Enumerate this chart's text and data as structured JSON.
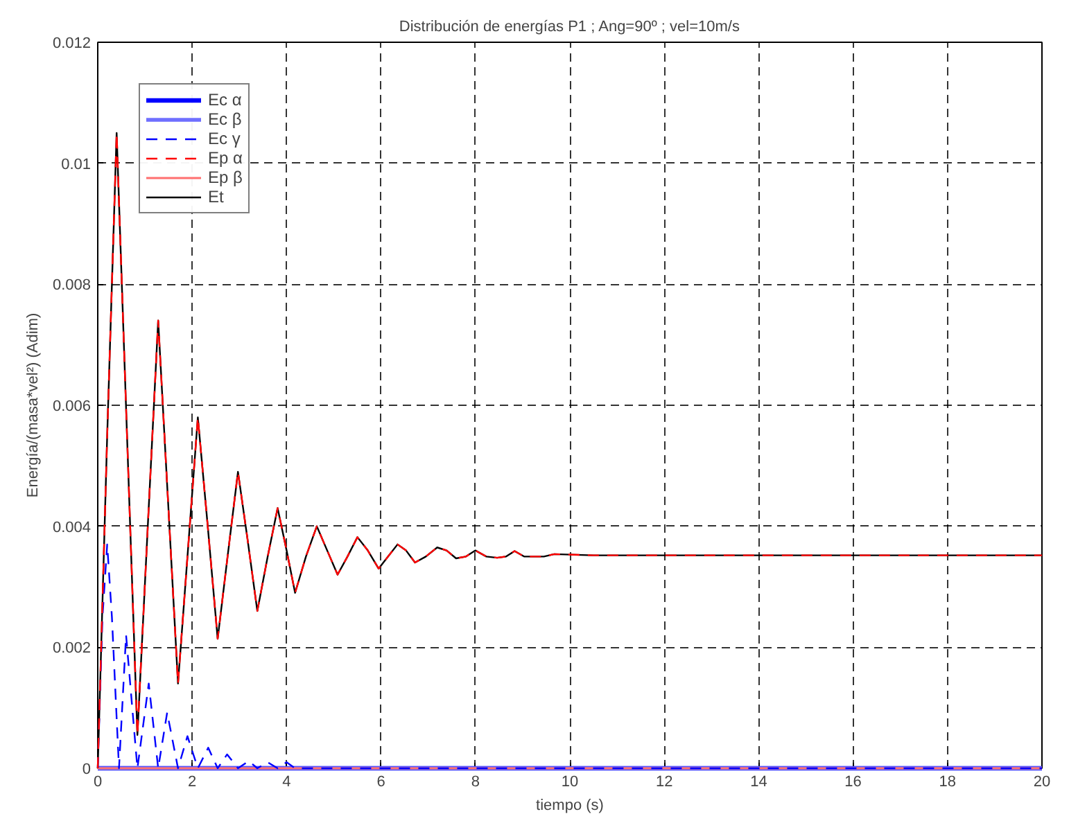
{
  "chart_data": {
    "type": "line",
    "title": "Distribución de energías P1 ; Ang=90º ; vel=10m/s",
    "xlabel": "tiempo (s)",
    "ylabel": "Energía/(masa*vel²) (Adim)",
    "xlim": [
      0,
      20
    ],
    "ylim": [
      0,
      0.012
    ],
    "xticks": [
      0,
      2,
      4,
      6,
      8,
      10,
      12,
      14,
      16,
      18,
      20
    ],
    "yticks": [
      0,
      0.002,
      0.004,
      0.006,
      0.008,
      0.01,
      0.012
    ],
    "grid": true,
    "legend": "top left",
    "marker": "none",
    "series": [
      {
        "name": "Ec α",
        "color": "#0000ff",
        "line_style": "solid",
        "x": [
          0,
          20
        ],
        "values": [
          0,
          0
        ]
      },
      {
        "name": "Ec β",
        "color": "#6f6fff",
        "line_style": "solid",
        "x": [
          0,
          20
        ],
        "values": [
          0,
          0
        ]
      },
      {
        "name": "Ec γ",
        "color": "#0000ff",
        "line_style": "dashed",
        "x": [
          0,
          0.1,
          0.2,
          0.3,
          0.45,
          0.6,
          0.84,
          1.08,
          1.28,
          1.47,
          1.7,
          1.9,
          2.12,
          2.34,
          2.54,
          2.74,
          2.97,
          3.2,
          3.38,
          3.6,
          3.81,
          4.0,
          4.18,
          4.4,
          4.64,
          20
        ],
        "values": [
          0,
          0.0025,
          0.0037,
          0.0025,
          0,
          0.0022,
          0,
          0.0014,
          0,
          0.00092,
          0,
          0.00053,
          0,
          0.00034,
          0,
          0.00023,
          0,
          0.00012,
          0,
          0.0001,
          0,
          0.0001,
          0,
          0,
          0,
          0
        ]
      },
      {
        "name": "Ep α",
        "color": "#ff0000",
        "line_style": "dashed",
        "x": [
          0,
          0.2,
          0.4,
          0.62,
          0.84,
          1.06,
          1.28,
          1.49,
          1.7,
          1.91,
          2.12,
          2.33,
          2.54,
          2.75,
          2.97,
          3.17,
          3.38,
          3.6,
          3.81,
          4.0,
          4.18,
          4.41,
          4.64,
          4.86,
          5.08,
          5.29,
          5.5,
          5.72,
          5.95,
          6.15,
          6.35,
          6.53,
          6.72,
          6.95,
          7.19,
          7.39,
          7.59,
          7.8,
          8.0,
          8.23,
          8.46,
          8.65,
          8.83,
          9.03,
          9.23,
          9.45,
          9.67,
          10.5,
          20
        ],
        "values": [
          0,
          0.0055,
          0.0105,
          0.0055,
          0.00055,
          0.004,
          0.0074,
          0.0044,
          0.0014,
          0.0036,
          0.0058,
          0.004,
          0.00214,
          0.0035,
          0.0049,
          0.0038,
          0.0026,
          0.0035,
          0.0043,
          0.0036,
          0.0029,
          0.0035,
          0.004,
          0.0036,
          0.0032,
          0.0035,
          0.00382,
          0.0036,
          0.0033,
          0.0035,
          0.0037,
          0.0036,
          0.0034,
          0.0035,
          0.00365,
          0.0036,
          0.00347,
          0.0035,
          0.0036,
          0.0035,
          0.00348,
          0.0035,
          0.00359,
          0.0035,
          0.0035,
          0.0035,
          0.00354,
          0.00352,
          0.00352
        ]
      },
      {
        "name": "Ep β",
        "color": "#ff6f6f",
        "line_style": "solid",
        "x": [
          0,
          20
        ],
        "values": [
          0,
          0
        ]
      },
      {
        "name": "Et",
        "color": "#000000",
        "line_style": "solid",
        "x": [
          0,
          0.2,
          0.4,
          0.62,
          0.84,
          1.06,
          1.28,
          1.49,
          1.7,
          1.91,
          2.12,
          2.33,
          2.54,
          2.75,
          2.97,
          3.17,
          3.38,
          3.6,
          3.81,
          4.0,
          4.18,
          4.41,
          4.64,
          4.86,
          5.08,
          5.29,
          5.5,
          5.72,
          5.95,
          6.15,
          6.35,
          6.53,
          6.72,
          6.95,
          7.19,
          7.39,
          7.59,
          7.8,
          8.0,
          8.23,
          8.46,
          8.65,
          8.83,
          9.03,
          9.23,
          9.45,
          9.67,
          10.5,
          20
        ],
        "values": [
          0,
          0.0055,
          0.0105,
          0.0055,
          0.00055,
          0.004,
          0.0074,
          0.0044,
          0.0014,
          0.0036,
          0.0058,
          0.004,
          0.00214,
          0.0035,
          0.0049,
          0.0038,
          0.0026,
          0.0035,
          0.0043,
          0.0036,
          0.0029,
          0.0035,
          0.004,
          0.0036,
          0.0032,
          0.0035,
          0.00382,
          0.0036,
          0.0033,
          0.0035,
          0.0037,
          0.0036,
          0.0034,
          0.0035,
          0.00365,
          0.0036,
          0.00347,
          0.0035,
          0.0036,
          0.0035,
          0.00348,
          0.0035,
          0.00359,
          0.0035,
          0.0035,
          0.0035,
          0.00354,
          0.00352,
          0.00352
        ]
      }
    ]
  }
}
